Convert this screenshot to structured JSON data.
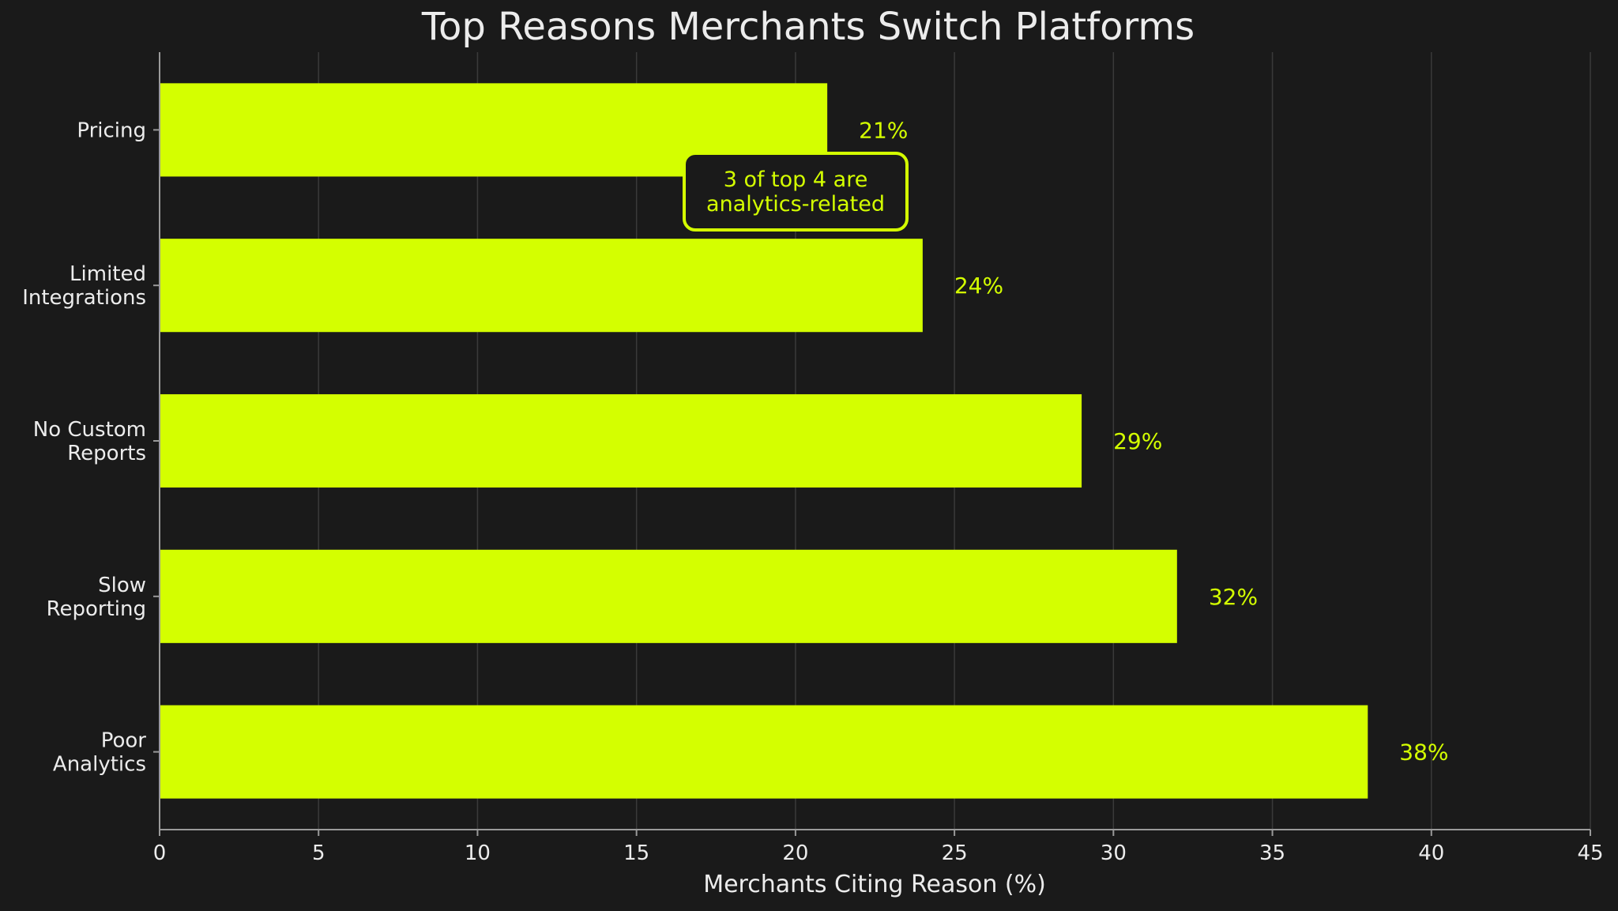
{
  "chart_data": {
    "type": "bar",
    "orientation": "horizontal",
    "title": "Top Reasons Merchants Switch Platforms",
    "xlabel": "Merchants Citing Reason (%)",
    "ylabel": "",
    "xlim": [
      0,
      45
    ],
    "xticks": [
      0,
      5,
      10,
      15,
      20,
      25,
      30,
      35,
      40,
      45
    ],
    "categories": [
      [
        "Pricing"
      ],
      [
        "Limited",
        "Integrations"
      ],
      [
        "No Custom",
        "Reports"
      ],
      [
        "Slow",
        "Reporting"
      ],
      [
        "Poor",
        "Analytics"
      ]
    ],
    "values": [
      21,
      24,
      29,
      32,
      38
    ],
    "data_labels": [
      "21%",
      "24%",
      "29%",
      "32%",
      "38%"
    ],
    "bar_color": "#d4ff00",
    "background_color": "#1a1a1a",
    "text_color": "#ececec",
    "grid": true,
    "grid_axis": "x",
    "legend": "none",
    "annotation": {
      "lines": [
        "3 of top 4 are",
        "analytics-related"
      ],
      "color": "#d4ff00"
    }
  }
}
